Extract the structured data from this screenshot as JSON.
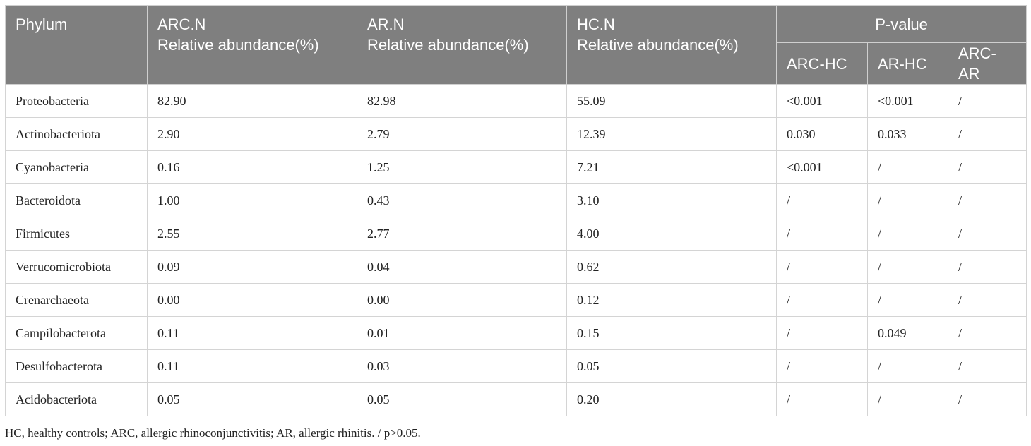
{
  "header": {
    "phylum": "Phylum",
    "arc_line1": "ARC.N",
    "arc_line2": "Relative abundance(%)",
    "ar_line1": "AR.N",
    "ar_line2": "Relative abundance(%)",
    "hc_line1": "HC.N",
    "hc_line2": "Relative abundance(%)",
    "pvalue": "P-value",
    "arc_hc": "ARC-HC",
    "ar_hc": "AR-HC",
    "arc_ar": "ARC-AR"
  },
  "rows": [
    [
      "Proteobacteria",
      "82.90",
      "82.98",
      "55.09",
      "<0.001",
      "<0.001",
      "/"
    ],
    [
      "Actinobacteriota",
      "2.90",
      "2.79",
      "12.39",
      "0.030",
      "0.033",
      "/"
    ],
    [
      "Cyanobacteria",
      "0.16",
      "1.25",
      "7.21",
      "<0.001",
      "/",
      "/"
    ],
    [
      "Bacteroidota",
      "1.00",
      "0.43",
      "3.10",
      "/",
      "/",
      "/"
    ],
    [
      "Firmicutes",
      "2.55",
      "2.77",
      "4.00",
      "/",
      "/",
      "/"
    ],
    [
      "Verrucomicrobiota",
      "0.09",
      "0.04",
      "0.62",
      "/",
      "/",
      "/"
    ],
    [
      "Crenarchaeota",
      "0.00",
      "0.00",
      "0.12",
      "/",
      "/",
      "/"
    ],
    [
      "Campilobacterota",
      "0.11",
      "0.01",
      "0.15",
      "/",
      "0.049",
      "/"
    ],
    [
      "Desulfobacterota",
      "0.11",
      "0.03",
      "0.05",
      "/",
      "/",
      "/"
    ],
    [
      "Acidobacteriota",
      "0.05",
      "0.05",
      "0.20",
      "/",
      "/",
      "/"
    ]
  ],
  "footnote": "HC, healthy controls; ARC, allergic rhinoconjunctivitis; AR, allergic rhinitis. / p>0.05."
}
